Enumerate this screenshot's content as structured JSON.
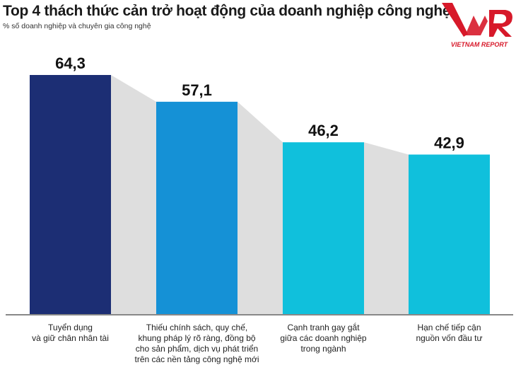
{
  "chart_data": {
    "type": "bar",
    "title": "Top 4 thách thức cản trở hoạt động của doanh nghiệp công nghệ",
    "subtitle": "% số doanh nghiệp và chuyên gia công nghệ",
    "categories": [
      [
        "Tuyển dụng",
        "và giữ chân nhân tài"
      ],
      [
        "Thiếu chính sách, quy chế,",
        "khung pháp lý rõ ràng, đồng bộ",
        "cho sản phẩm, dịch vụ phát triển",
        "trên các nền tảng công nghệ mới"
      ],
      [
        "Cạnh tranh gay gắt",
        "giữa các doanh nghiệp",
        "trong ngành"
      ],
      [
        "Hạn chế tiếp cận",
        "nguồn vốn đầu tư"
      ]
    ],
    "values": [
      64.3,
      57.1,
      46.2,
      42.9
    ],
    "value_labels": [
      "64,3",
      "57,1",
      "46,2",
      "42,9"
    ],
    "colors": [
      "#1c2e74",
      "#1591d6",
      "#10c0dc",
      "#10c0dc"
    ],
    "connector_color": "#dedede",
    "ylim": [
      0,
      64.3
    ],
    "grid": false
  },
  "logo": {
    "text": "VNR",
    "caption": "VIETNAM REPORT",
    "color": "#d7192a"
  }
}
